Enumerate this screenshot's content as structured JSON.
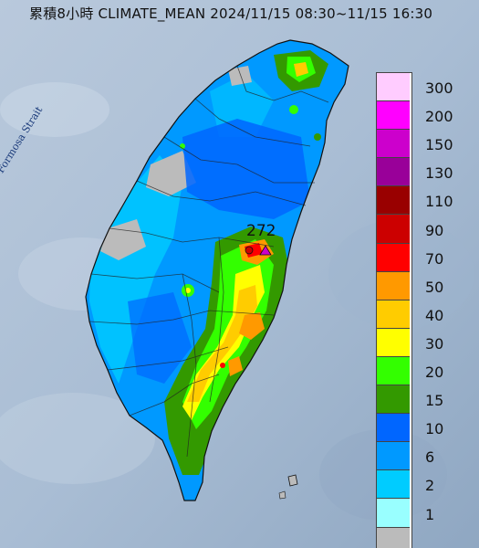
{
  "title": "累積8小時 CLIMATE_MEAN 2024/11/15 08:30~11/15 16:30",
  "sea_label": "Formosa Strait",
  "peak_value": "272",
  "legend": [
    {
      "label": "300",
      "color": "#ffccff"
    },
    {
      "label": "200",
      "color": "#ff00ff"
    },
    {
      "label": "150",
      "color": "#cc00cc"
    },
    {
      "label": "130",
      "color": "#990099"
    },
    {
      "label": "110",
      "color": "#990000"
    },
    {
      "label": "90",
      "color": "#cc0000"
    },
    {
      "label": "70",
      "color": "#ff0000"
    },
    {
      "label": "50",
      "color": "#ff9900"
    },
    {
      "label": "40",
      "color": "#ffcc00"
    },
    {
      "label": "30",
      "color": "#ffff00"
    },
    {
      "label": "20",
      "color": "#33ff00"
    },
    {
      "label": "15",
      "color": "#339900"
    },
    {
      "label": "10",
      "color": "#0066ff"
    },
    {
      "label": "6",
      "color": "#0099ff"
    },
    {
      "label": "2",
      "color": "#00ccff"
    },
    {
      "label": "1",
      "color": "#99ffff"
    },
    {
      "label": "",
      "color": "#bbbbbb"
    }
  ]
}
